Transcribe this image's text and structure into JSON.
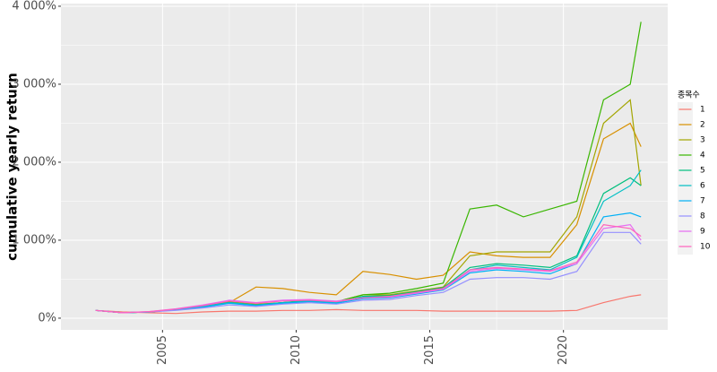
{
  "chart_data": {
    "type": "line",
    "y_label": "cumulative yearly return",
    "legend_title": "종목수",
    "legend_position": "right",
    "grid": true,
    "x": [
      2002.5,
      2003.5,
      2004.5,
      2005.5,
      2006.5,
      2007.5,
      2008.5,
      2009.5,
      2010.5,
      2011.5,
      2012.5,
      2013.5,
      2014.5,
      2015.5,
      2016.5,
      2017.5,
      2018.5,
      2019.5,
      2020.5,
      2021.5,
      2022.5,
      2022.9
    ],
    "xlim": [
      2001.2,
      2023.9
    ],
    "xticks": [
      2005,
      2010,
      2015,
      2020
    ],
    "ylim": [
      -150,
      4034
    ],
    "yticks": [
      {
        "value": 0,
        "label": "0%"
      },
      {
        "value": 1000,
        "label": "1 000%"
      },
      {
        "value": 2000,
        "label": "2 000%"
      },
      {
        "value": 3000,
        "label": "3 000%"
      },
      {
        "value": 4000,
        "label": "4 000%"
      }
    ],
    "series": [
      {
        "name": "1",
        "color": "#F8766D",
        "values": [
          100,
          80,
          70,
          60,
          80,
          90,
          90,
          100,
          100,
          110,
          100,
          100,
          100,
          90,
          90,
          90,
          90,
          90,
          100,
          200,
          280,
          300
        ]
      },
      {
        "name": "2",
        "color": "#D89000",
        "values": [
          100,
          70,
          80,
          110,
          150,
          200,
          400,
          380,
          330,
          300,
          600,
          560,
          500,
          550,
          850,
          800,
          780,
          780,
          1200,
          2300,
          2500,
          2200
        ]
      },
      {
        "name": "3",
        "color": "#A3A500",
        "values": [
          100,
          70,
          80,
          110,
          160,
          210,
          180,
          200,
          220,
          210,
          300,
          300,
          350,
          400,
          800,
          850,
          850,
          850,
          1300,
          2500,
          2800,
          1700
        ]
      },
      {
        "name": "4",
        "color": "#39B600",
        "values": [
          100,
          70,
          80,
          110,
          150,
          200,
          170,
          200,
          230,
          210,
          300,
          320,
          380,
          450,
          1400,
          1450,
          1300,
          1400,
          1500,
          2800,
          3000,
          3800
        ]
      },
      {
        "name": "5",
        "color": "#00BF7D",
        "values": [
          100,
          70,
          80,
          110,
          150,
          200,
          170,
          200,
          220,
          200,
          280,
          290,
          340,
          390,
          650,
          700,
          680,
          650,
          800,
          1600,
          1800,
          1700
        ]
      },
      {
        "name": "6",
        "color": "#00BFC4",
        "values": [
          100,
          70,
          80,
          110,
          150,
          200,
          170,
          200,
          220,
          200,
          270,
          280,
          330,
          380,
          620,
          680,
          650,
          620,
          780,
          1500,
          1700,
          1900
        ]
      },
      {
        "name": "7",
        "color": "#00B0F6",
        "values": [
          100,
          70,
          80,
          110,
          140,
          190,
          160,
          190,
          210,
          190,
          250,
          260,
          310,
          360,
          580,
          620,
          600,
          570,
          700,
          1300,
          1350,
          1300
        ]
      },
      {
        "name": "8",
        "color": "#9590FF",
        "values": [
          100,
          70,
          80,
          100,
          130,
          170,
          150,
          180,
          200,
          180,
          230,
          240,
          290,
          330,
          500,
          520,
          520,
          500,
          600,
          1100,
          1100,
          950
        ]
      },
      {
        "name": "9",
        "color": "#E76BF3",
        "values": [
          100,
          70,
          85,
          120,
          170,
          230,
          200,
          230,
          240,
          220,
          260,
          270,
          320,
          370,
          600,
          640,
          620,
          600,
          700,
          1150,
          1200,
          1000
        ]
      },
      {
        "name": "10",
        "color": "#FF62BC",
        "values": [
          100,
          70,
          85,
          115,
          160,
          220,
          190,
          220,
          230,
          210,
          260,
          280,
          330,
          380,
          620,
          650,
          630,
          610,
          720,
          1200,
          1150,
          1050
        ]
      }
    ]
  }
}
